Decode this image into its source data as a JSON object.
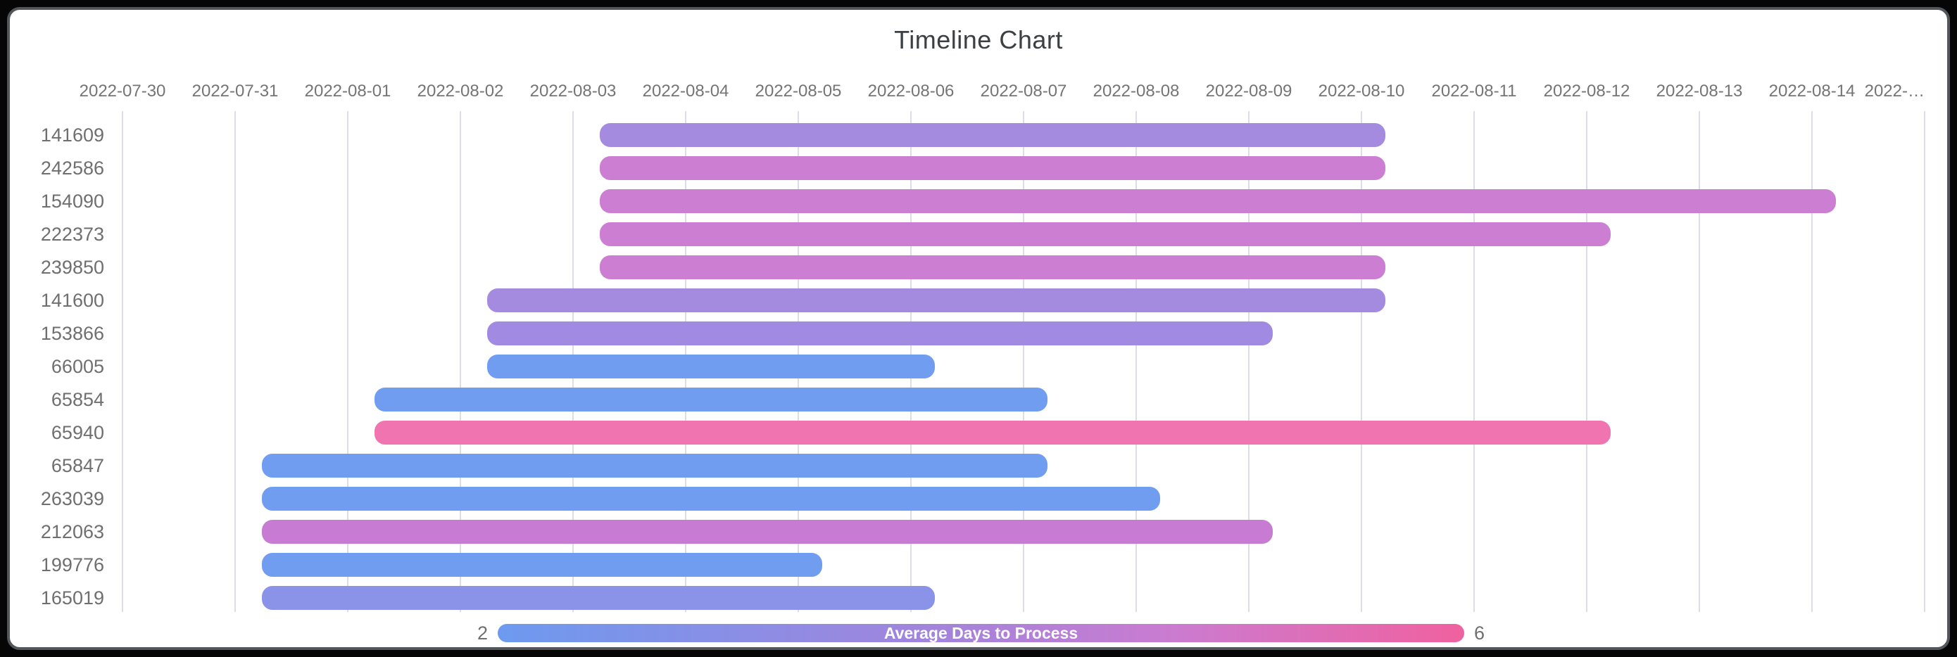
{
  "chart_data": {
    "type": "timeline",
    "title": "Timeline Chart",
    "x_axis": {
      "labels": [
        "2022-07-30",
        "2022-07-31",
        "2022-08-01",
        "2022-08-02",
        "2022-08-03",
        "2022-08-04",
        "2022-08-05",
        "2022-08-06",
        "2022-08-07",
        "2022-08-08",
        "2022-08-09",
        "2022-08-10",
        "2022-08-11",
        "2022-08-12",
        "2022-08-13",
        "2022-08-14",
        "2022-…"
      ],
      "grid": true,
      "position": "top"
    },
    "rows": [
      {
        "id": "141609",
        "start": "2022-08-03",
        "end": "2022-08-10",
        "color": "#a58be0",
        "avg_days_approx": 4
      },
      {
        "id": "242586",
        "start": "2022-08-03",
        "end": "2022-08-10",
        "color": "#cb7ed2",
        "avg_days_approx": 5
      },
      {
        "id": "154090",
        "start": "2022-08-03",
        "end": "2022-08-14",
        "color": "#cb7ed2",
        "avg_days_approx": 5
      },
      {
        "id": "222373",
        "start": "2022-08-03",
        "end": "2022-08-12",
        "color": "#cb7ed2",
        "avg_days_approx": 5
      },
      {
        "id": "239850",
        "start": "2022-08-03",
        "end": "2022-08-10",
        "color": "#cb7ed2",
        "avg_days_approx": 5
      },
      {
        "id": "141600",
        "start": "2022-08-02",
        "end": "2022-08-10",
        "color": "#a58be0",
        "avg_days_approx": 4
      },
      {
        "id": "153866",
        "start": "2022-08-02",
        "end": "2022-08-09",
        "color": "#a18ae2",
        "avg_days_approx": 4
      },
      {
        "id": "66005",
        "start": "2022-08-02",
        "end": "2022-08-06",
        "color": "#719df0",
        "avg_days_approx": 2
      },
      {
        "id": "65854",
        "start": "2022-08-01",
        "end": "2022-08-07",
        "color": "#719df0",
        "avg_days_approx": 2
      },
      {
        "id": "65940",
        "start": "2022-08-01",
        "end": "2022-08-12",
        "color": "#ef74af",
        "avg_days_approx": 6
      },
      {
        "id": "65847",
        "start": "2022-07-31",
        "end": "2022-08-07",
        "color": "#719df0",
        "avg_days_approx": 2
      },
      {
        "id": "263039",
        "start": "2022-07-31",
        "end": "2022-08-08",
        "color": "#719df0",
        "avg_days_approx": 2
      },
      {
        "id": "212063",
        "start": "2022-07-31",
        "end": "2022-08-09",
        "color": "#c77bd3",
        "avg_days_approx": 5
      },
      {
        "id": "199776",
        "start": "2022-07-31",
        "end": "2022-08-05",
        "color": "#719df0",
        "avg_days_approx": 2
      },
      {
        "id": "165019",
        "start": "2022-07-31",
        "end": "2022-08-06",
        "color": "#8b93e8",
        "avg_days_approx": 3
      }
    ],
    "legend": {
      "label": "Average Days to Process",
      "min": "2",
      "max": "6",
      "gradient": [
        "#6d9aef",
        "#a284dc",
        "#cb7bd0",
        "#f0619f"
      ],
      "position": "bottom"
    },
    "colors": {
      "grid": "#dcdee3",
      "axis_text": "#757575",
      "row_text": "#6f6f6f",
      "title_text": "#3c4043",
      "frame": "#060606",
      "card_border": "#53575b"
    }
  }
}
